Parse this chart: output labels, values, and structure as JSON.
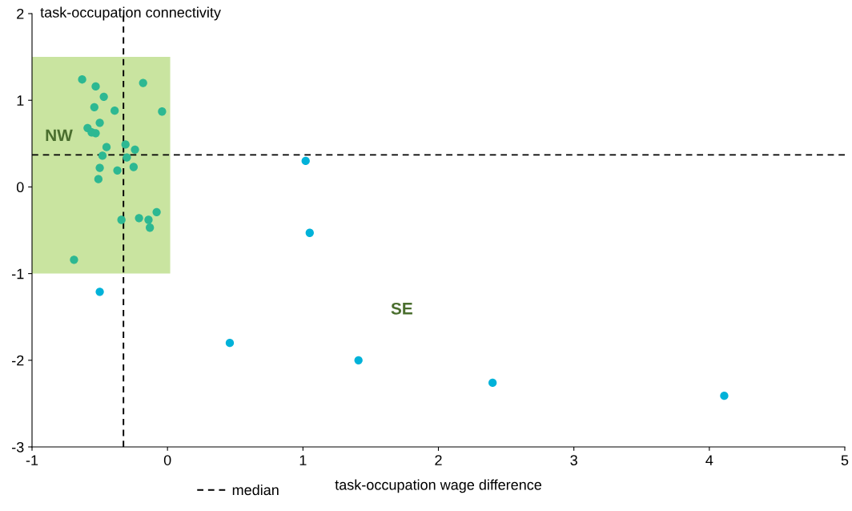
{
  "chart_data": {
    "type": "scatter",
    "xlabel": "task-occupation wage difference",
    "ylabel": "task-occupation connectivity",
    "series": [
      {
        "color": "#2db892",
        "x": [
          -0.63,
          -0.53,
          -0.18,
          -0.47,
          -0.54,
          -0.39,
          -0.04,
          -0.5,
          -0.59,
          -0.56,
          -0.53,
          -0.45,
          -0.31,
          -0.24,
          -0.48,
          -0.3,
          -0.5,
          -0.25,
          -0.37,
          -0.51,
          -0.08,
          -0.34,
          -0.21,
          -0.14,
          -0.13,
          -0.69
        ],
        "values": [
          1.24,
          1.16,
          1.2,
          1.04,
          0.92,
          0.88,
          0.87,
          0.74,
          0.68,
          0.63,
          0.62,
          0.46,
          0.49,
          0.43,
          0.36,
          0.34,
          0.22,
          0.23,
          0.19,
          0.09,
          -0.29,
          -0.38,
          -0.36,
          -0.38,
          -0.47,
          -0.84
        ]
      },
      {
        "color": "#00b2d9",
        "x": [
          1.02,
          1.05,
          -0.5,
          0.46,
          1.41,
          2.4,
          4.11
        ],
        "values": [
          0.3,
          -0.53,
          -1.21,
          -1.8,
          -2.0,
          -2.26,
          -2.41
        ]
      }
    ],
    "marker": "circle",
    "xlim": [
      -1,
      5
    ],
    "xticks": [
      -1,
      0,
      1,
      2,
      3,
      4,
      5
    ],
    "ylim": [
      -3,
      2
    ],
    "yticks": [
      -3,
      -2,
      -1,
      0,
      1,
      2
    ],
    "ref_lines": [
      {
        "axis": "x",
        "value": -0.325,
        "label": "median",
        "line_style": "dashed",
        "color": "#000000"
      },
      {
        "axis": "y",
        "value": 0.37,
        "line_style": "dashed",
        "color": "#000000"
      }
    ],
    "annotations": [
      "NW",
      "SE"
    ],
    "legend": "bottom",
    "grid": false
  }
}
